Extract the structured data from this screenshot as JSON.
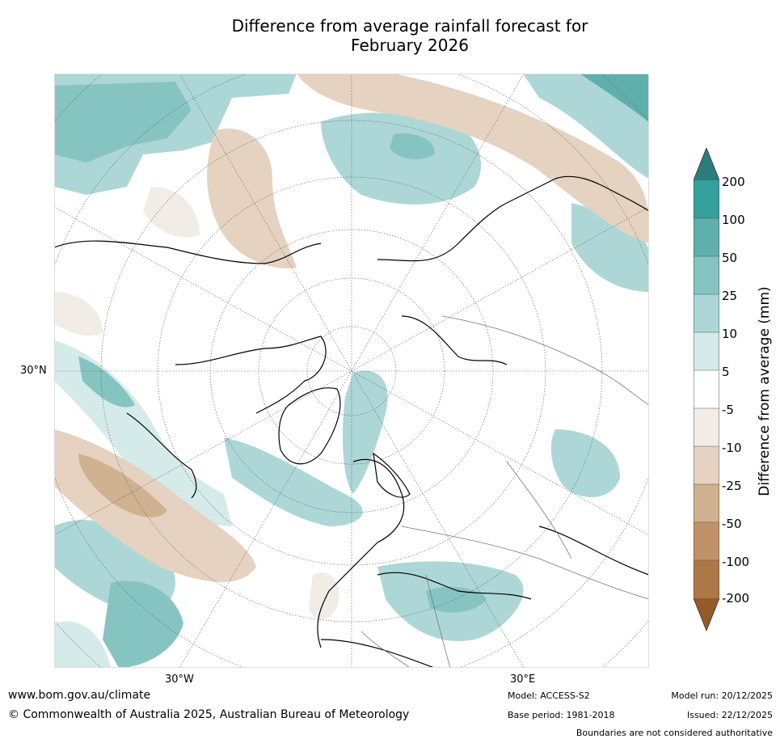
{
  "title_line1": "Difference from average rainfall forecast for",
  "title_line2": "February 2026",
  "labels": {
    "lat": "30°N",
    "lon_left": "30°W",
    "lon_right": "30°E"
  },
  "colorbar": {
    "label": "Difference from average (mm)",
    "ticks": [
      "200",
      "100",
      "50",
      "25",
      "10",
      "5",
      "-5",
      "-10",
      "-25",
      "-50",
      "-100",
      "-200"
    ],
    "colors": [
      "#2a7d7b",
      "#35a09c",
      "#5fb0ad",
      "#86c4c2",
      "#acd7d6",
      "#d4ebea",
      "#ffffff",
      "#f1ece6",
      "#e5d2c0",
      "#d0b190",
      "#c1926a",
      "#ad7847",
      "#935b27"
    ]
  },
  "footer": {
    "url": "www.bom.gov.au/climate",
    "copyright": "© Commonwealth of Australia 2025, Australian Bureau of Meteorology",
    "model": "Model: ACCESS-S2",
    "base_period": "Base period: 1981-2018",
    "model_run": "Model run: 20/12/2025",
    "issued": "Issued: 22/12/2025",
    "disclaimer": "Boundaries are not considered authoritative"
  }
}
